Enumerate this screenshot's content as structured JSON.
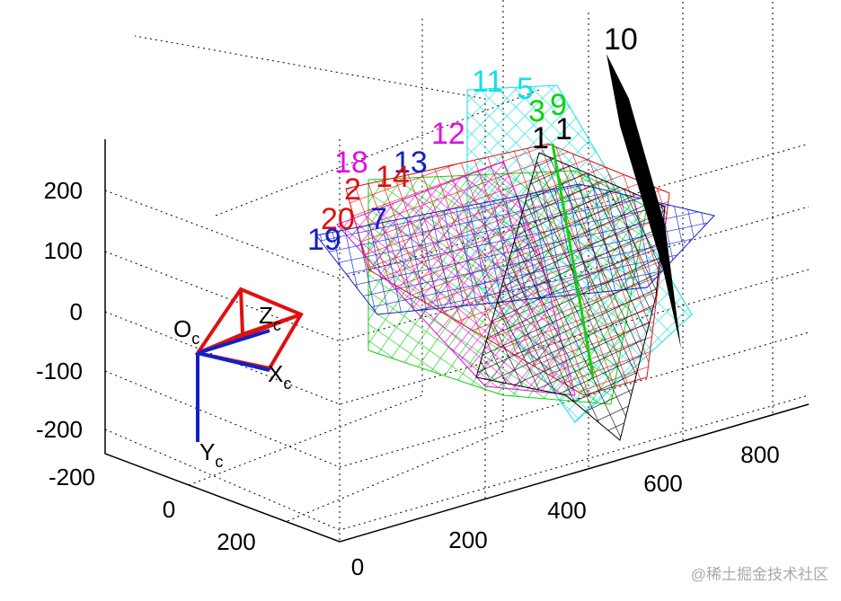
{
  "z_axis": {
    "ticks": [
      "200",
      "100",
      "0",
      "-100",
      "-200"
    ]
  },
  "y_axis": {
    "ticks": [
      "-200",
      "0",
      "200"
    ]
  },
  "x_axis": {
    "ticks": [
      "0",
      "200",
      "400",
      "600",
      "800"
    ]
  },
  "camera": {
    "origin": "O",
    "z": "Z",
    "x": "X",
    "y": "Y",
    "subscript": "c"
  },
  "planes": [
    "10",
    "11",
    "5",
    "3",
    "9",
    "1",
    "1",
    "12",
    "18",
    "13",
    "14",
    "2",
    "20",
    "7",
    "19"
  ],
  "watermark": "@稀土掘金技术社区"
}
